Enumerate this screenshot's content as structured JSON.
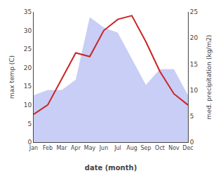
{
  "chart_data": {
    "type": "line",
    "categories": [
      "Jan",
      "Feb",
      "Mar",
      "Apr",
      "May",
      "Jun",
      "Jul",
      "Aug",
      "Sep",
      "Oct",
      "Nov",
      "Dec"
    ],
    "series": [
      {
        "type": "area",
        "axis": "y2",
        "color": "#c8cef5",
        "values": [
          9,
          10,
          10,
          12,
          24,
          22,
          21,
          16,
          11,
          14,
          14,
          9
        ]
      },
      {
        "type": "line",
        "color": "#cc2222",
        "values": [
          7.5,
          10,
          17,
          24,
          23,
          30,
          33,
          34,
          27,
          19,
          13,
          10
        ]
      }
    ],
    "xlabel": "date (month)",
    "ylabel": "max temp (C)",
    "y2label": "med. precipitation (kg/m2)",
    "ylim": [
      0,
      35
    ],
    "yticks": [
      0,
      5,
      10,
      15,
      20,
      25,
      30,
      35
    ],
    "y2lim": [
      0,
      25
    ],
    "y2ticks": [
      0,
      5,
      10,
      15,
      20,
      25
    ],
    "grid": false
  }
}
